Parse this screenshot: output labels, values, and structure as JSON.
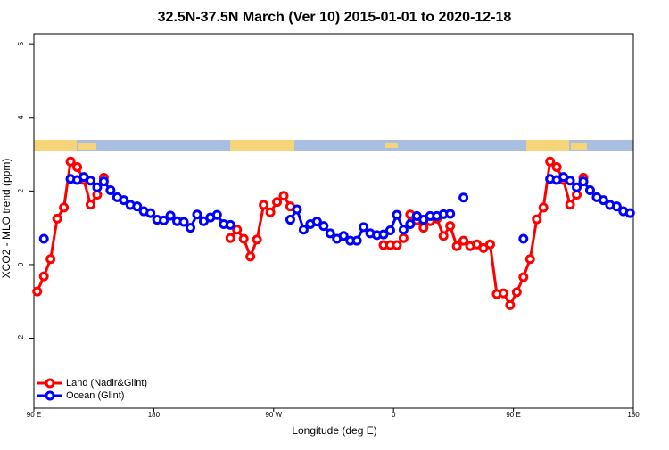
{
  "chart_data": {
    "type": "line",
    "title": "32.5N-37.5N March (Ver 10)   2015-01-01 to 2020-12-18",
    "x_label": "Longitude (deg E)",
    "y_label": "XCO2 - MLO trend (ppm)",
    "x": [
      92.5,
      97.5,
      102.5,
      107.5,
      112.5,
      117.5,
      122.5,
      127.5,
      132.5,
      137.5,
      142.5,
      147.5,
      152.5,
      157.5,
      162.5,
      167.5,
      172.5,
      177.5,
      182.5,
      187.5,
      192.5,
      197.5,
      202.5,
      207.5,
      212.5,
      217.5,
      222.5,
      227.5,
      232.5,
      237.5,
      242.5,
      247.5,
      252.5,
      257.5,
      262.5,
      267.5,
      272.5,
      277.5,
      282.5,
      287.5,
      292.5,
      297.5,
      302.5,
      307.5,
      312.5,
      317.5,
      322.5,
      327.5,
      332.5,
      337.5,
      342.5,
      347.5,
      352.5,
      357.5,
      362.5,
      367.5,
      372.5,
      377.5,
      382.5,
      387.5,
      392.5,
      397.5,
      402.5,
      407.5,
      412.5,
      417.5,
      422.5,
      427.5,
      432.5,
      437.5,
      442.5,
      447.5,
      452.5,
      457.5,
      462.5,
      467.5,
      472.5,
      477.5,
      482.5,
      487.5,
      492.5,
      497.5,
      502.5,
      507.5,
      512.5,
      517.5,
      522.5,
      527.5,
      532.5,
      537.5
    ],
    "xlim": [
      90,
      540
    ],
    "xticks": [
      {
        "value": 90,
        "label": "90 E"
      },
      {
        "value": 180,
        "label": "180"
      },
      {
        "value": 270,
        "label": "90 W"
      },
      {
        "value": 360,
        "label": "0"
      },
      {
        "value": 450,
        "label": "90 E"
      },
      {
        "value": 540,
        "label": "180"
      }
    ],
    "ylim": [
      -3.9,
      6.27
    ],
    "yticks": [
      -2,
      0,
      2,
      4,
      6
    ],
    "legend": "bottom-left",
    "series": [
      {
        "name": "Land (Nadir&Glint)",
        "color": "#ff0000",
        "values": [
          -0.73,
          -0.32,
          0.15,
          1.25,
          1.55,
          2.8,
          2.65,
          2.3,
          1.63,
          1.9,
          2.36,
          null,
          null,
          null,
          null,
          null,
          null,
          null,
          null,
          null,
          null,
          null,
          null,
          null,
          null,
          null,
          null,
          null,
          null,
          0.72,
          0.95,
          0.7,
          0.22,
          0.68,
          1.62,
          1.42,
          1.7,
          1.87,
          1.58,
          null,
          null,
          null,
          null,
          null,
          null,
          null,
          null,
          null,
          null,
          null,
          null,
          null,
          0.53,
          0.53,
          0.53,
          0.72,
          1.36,
          1.2,
          1.0,
          1.18,
          1.25,
          0.78,
          1.05,
          0.5,
          0.65,
          0.5,
          0.55,
          0.45,
          0.55,
          -0.8,
          -0.78,
          -1.1,
          -0.75,
          -0.34,
          0.15,
          1.23,
          1.55,
          2.8,
          2.65,
          2.3,
          1.63,
          1.9,
          2.36,
          null,
          null,
          null,
          null,
          null,
          null,
          null
        ]
      },
      {
        "name": "Ocean (Glint)",
        "color": "#0000ff",
        "values": [
          null,
          0.7,
          null,
          null,
          null,
          2.33,
          2.3,
          2.38,
          2.28,
          2.1,
          2.26,
          2.02,
          1.83,
          1.75,
          1.62,
          1.58,
          1.45,
          1.4,
          1.22,
          1.2,
          1.33,
          1.18,
          1.16,
          1.0,
          1.36,
          1.18,
          1.28,
          1.35,
          1.1,
          1.08,
          null,
          null,
          null,
          null,
          null,
          null,
          null,
          null,
          1.22,
          1.5,
          0.95,
          1.1,
          1.17,
          1.05,
          0.85,
          0.7,
          0.78,
          0.65,
          0.65,
          1.02,
          0.85,
          0.8,
          0.82,
          0.93,
          1.35,
          0.95,
          1.1,
          1.32,
          1.22,
          1.32,
          1.32,
          1.37,
          1.38,
          null,
          1.82,
          null,
          null,
          null,
          null,
          null,
          null,
          null,
          null,
          0.7,
          null,
          null,
          null,
          2.33,
          2.3,
          2.38,
          2.28,
          2.1,
          2.26,
          2.02,
          1.83,
          1.75,
          1.62,
          1.58,
          1.45,
          1.4
        ]
      }
    ]
  }
}
